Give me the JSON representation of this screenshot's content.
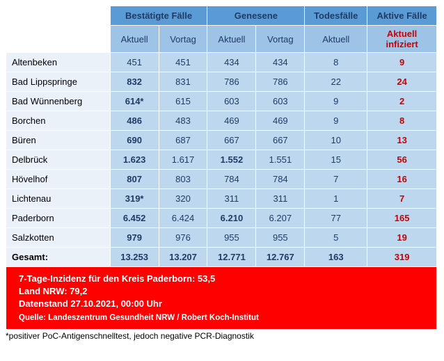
{
  "table": {
    "type": "table",
    "colors": {
      "group_header_bg": "#5b9bd5",
      "sub_header_bg": "#9dc3e6",
      "header_text": "#1f3b66",
      "cell_bg": "#bdd7ee",
      "row_label_bg": "#eaf1f9",
      "active_text": "#cc0000",
      "info_bg": "#ff0000",
      "info_text": "#ffffff",
      "border": "#ffffff"
    },
    "group_headers": {
      "confirmed": "Bestätigte Fälle",
      "recovered": "Genesene",
      "deaths": "Todesfälle",
      "active": "Aktive Fälle"
    },
    "sub_headers": {
      "current": "Aktuell",
      "prev": "Vortag",
      "active_line1": "Aktuell",
      "active_line2": "infiziert"
    },
    "rows": [
      {
        "label": "Altenbeken",
        "conf_cur": "451",
        "conf_cur_bold": false,
        "conf_prev": "451",
        "rec_cur": "434",
        "rec_cur_bold": false,
        "rec_prev": "434",
        "deaths": "8",
        "active": "9"
      },
      {
        "label": "Bad Lippspringe",
        "conf_cur": "832",
        "conf_cur_bold": true,
        "conf_prev": "831",
        "rec_cur": "786",
        "rec_cur_bold": false,
        "rec_prev": "786",
        "deaths": "22",
        "active": "24"
      },
      {
        "label": "Bad Wünnenberg",
        "conf_cur": "614*",
        "conf_cur_bold": true,
        "conf_prev": "615",
        "rec_cur": "603",
        "rec_cur_bold": false,
        "rec_prev": "603",
        "deaths": "9",
        "active": "2"
      },
      {
        "label": "Borchen",
        "conf_cur": "486",
        "conf_cur_bold": true,
        "conf_prev": "483",
        "rec_cur": "469",
        "rec_cur_bold": false,
        "rec_prev": "469",
        "deaths": "9",
        "active": "8"
      },
      {
        "label": "Büren",
        "conf_cur": "690",
        "conf_cur_bold": true,
        "conf_prev": "687",
        "rec_cur": "667",
        "rec_cur_bold": false,
        "rec_prev": "667",
        "deaths": "10",
        "active": "13"
      },
      {
        "label": "Delbrück",
        "conf_cur": "1.623",
        "conf_cur_bold": true,
        "conf_prev": "1.617",
        "rec_cur": "1.552",
        "rec_cur_bold": true,
        "rec_prev": "1.551",
        "deaths": "15",
        "active": "56"
      },
      {
        "label": "Hövelhof",
        "conf_cur": "807",
        "conf_cur_bold": true,
        "conf_prev": "803",
        "rec_cur": "784",
        "rec_cur_bold": false,
        "rec_prev": "784",
        "deaths": "7",
        "active": "16"
      },
      {
        "label": "Lichtenau",
        "conf_cur": "319*",
        "conf_cur_bold": true,
        "conf_prev": "320",
        "rec_cur": "311",
        "rec_cur_bold": false,
        "rec_prev": "311",
        "deaths": "1",
        "active": "7"
      },
      {
        "label": "Paderborn",
        "conf_cur": "6.452",
        "conf_cur_bold": true,
        "conf_prev": "6.424",
        "rec_cur": "6.210",
        "rec_cur_bold": true,
        "rec_prev": "6.207",
        "deaths": "77",
        "active": "165"
      },
      {
        "label": "Salzkotten",
        "conf_cur": "979",
        "conf_cur_bold": true,
        "conf_prev": "976",
        "rec_cur": "955",
        "rec_cur_bold": false,
        "rec_prev": "955",
        "deaths": "5",
        "active": "19"
      }
    ],
    "total": {
      "label": "Gesamt:",
      "conf_cur": "13.253",
      "conf_prev": "13.207",
      "rec_cur": "12.771",
      "rec_prev": "12.767",
      "deaths": "163",
      "active": "319"
    },
    "col_widths": {
      "label": 150,
      "conf_cur": 70,
      "conf_prev": 70,
      "rec_cur": 70,
      "rec_prev": 70,
      "deaths": 90,
      "active": 100
    }
  },
  "info": {
    "line1": "7-Tage-Inzidenz für den Kreis Paderborn: 53,5",
    "line2": "Land NRW: 79,2",
    "line3": "Datenstand 27.10.2021, 00:00 Uhr",
    "source": "Quelle: Landeszentrum Gesundheit NRW / Robert Koch-Institut"
  },
  "footnote": "*positiver PoC-Antigenschnelltest, jedoch negative PCR-Diagnostik"
}
